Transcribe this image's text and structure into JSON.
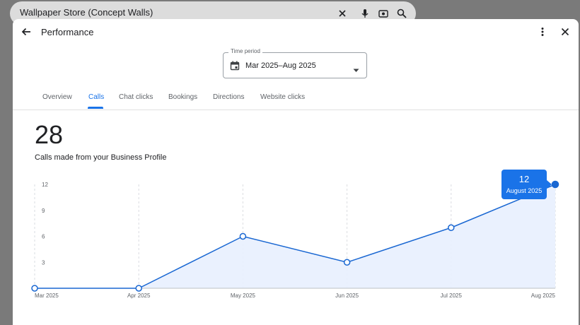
{
  "background": {
    "search_query": "Wallpaper Store (Concept Walls)"
  },
  "header": {
    "title": "Performance"
  },
  "time_period": {
    "label": "Time period",
    "value": "Mar 2025–Aug 2025"
  },
  "tabs": [
    {
      "label": "Overview",
      "active": false
    },
    {
      "label": "Calls",
      "active": true
    },
    {
      "label": "Chat clicks",
      "active": false
    },
    {
      "label": "Bookings",
      "active": false
    },
    {
      "label": "Directions",
      "active": false
    },
    {
      "label": "Website clicks",
      "active": false
    }
  ],
  "metric": {
    "total": "28",
    "label": "Calls made from your Business Profile"
  },
  "tooltip": {
    "value": "12",
    "label": "August 2025"
  },
  "colors": {
    "accent": "#1a73e8",
    "line": "#1967d2",
    "area": "#e8f0fe"
  },
  "chart_data": {
    "type": "line",
    "categories": [
      "Mar 2025",
      "Apr 2025",
      "May 2025",
      "Jun 2025",
      "Jul 2025",
      "Aug 2025"
    ],
    "values": [
      0,
      0,
      6,
      3,
      7,
      12
    ],
    "y_ticks": [
      "3",
      "6",
      "9",
      "12"
    ],
    "ylim": [
      0,
      12
    ],
    "grid": "vertical dashed",
    "highlighted": "Aug 2025"
  }
}
